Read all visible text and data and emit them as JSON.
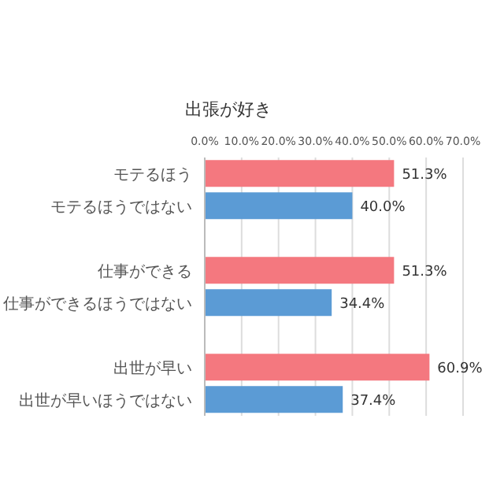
{
  "chart_data": {
    "type": "bar",
    "orientation": "horizontal",
    "title": "出張が好き",
    "categories": [
      "モテるほう",
      "モテるほうではない",
      "仕事ができる",
      "仕事ができるほうではない",
      "出世が早い",
      "出世が早いほうではない"
    ],
    "values": [
      51.3,
      40.0,
      51.3,
      34.4,
      60.9,
      37.4
    ],
    "colors": [
      "#f4787f",
      "#5b9bd5",
      "#f4787f",
      "#5b9bd5",
      "#f4787f",
      "#5b9bd5"
    ],
    "value_labels": [
      "51.3%",
      "40.0%",
      "51.3%",
      "34.4%",
      "60.9%",
      "37.4%"
    ],
    "xlim": [
      0,
      70
    ],
    "xticks": [
      {
        "value": 0,
        "label": "0.0%"
      },
      {
        "value": 10,
        "label": "10.0%"
      },
      {
        "value": 20,
        "label": "20.0%"
      },
      {
        "value": 30,
        "label": "30.0%"
      },
      {
        "value": 40,
        "label": "40.0%"
      },
      {
        "value": 50,
        "label": "50.0%"
      },
      {
        "value": 60,
        "label": "60.0%"
      },
      {
        "value": 70,
        "label": "70.0%"
      }
    ],
    "grid": "x"
  }
}
